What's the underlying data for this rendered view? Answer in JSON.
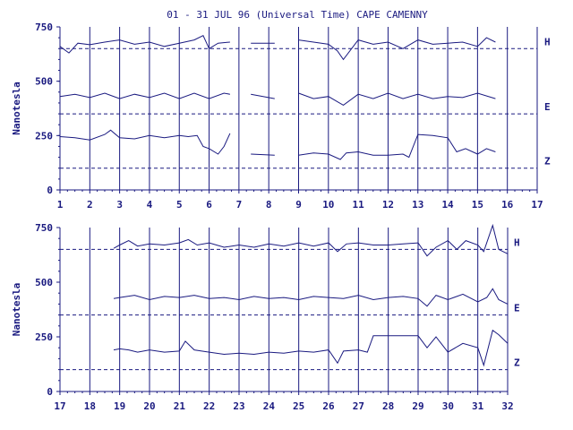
{
  "title": "01 - 31 JUL 96 (Universal Time) CAPE CAMENNY",
  "colors": {
    "ink": "#1a1a80",
    "background": "#ffffff"
  },
  "chart_data": [
    {
      "type": "line",
      "panel": "top",
      "title": "01 - 31 JUL 96 (Universal Time) CAPE CAMENNY",
      "ylabel": "Nanotesla",
      "xlim": [
        1,
        17
      ],
      "ylim": [
        0,
        750
      ],
      "x_ticks": [
        "1",
        "2",
        "3",
        "4",
        "5",
        "6",
        "7",
        "8",
        "9",
        "10",
        "11",
        "12",
        "13",
        "14",
        "15",
        "16",
        "17"
      ],
      "y_ticks": [
        "0",
        "250",
        "500",
        "750"
      ],
      "baselines": [
        {
          "name": "H",
          "value": 650
        },
        {
          "name": "E",
          "value": 350
        },
        {
          "name": "Z",
          "value": 100
        }
      ],
      "grid": "vertical lines at each day",
      "series": [
        {
          "name": "H",
          "x": [
            1,
            1.3,
            1.6,
            2,
            2.5,
            3,
            3.5,
            4,
            4.5,
            5,
            5.5,
            5.8,
            6,
            6.3,
            6.7,
            null,
            7.4,
            8.2,
            null,
            9,
            9.5,
            10,
            10.3,
            10.5,
            11,
            11.5,
            12,
            12.5,
            13,
            13.5,
            14,
            14.5,
            15,
            15.3,
            15.6
          ],
          "y": [
            660,
            630,
            675,
            668,
            680,
            690,
            670,
            680,
            660,
            675,
            690,
            710,
            650,
            675,
            680,
            null,
            675,
            675,
            null,
            690,
            680,
            670,
            640,
            600,
            690,
            670,
            680,
            650,
            690,
            670,
            675,
            680,
            660,
            700,
            680
          ]
        },
        {
          "name": "E",
          "x": [
            1,
            1.5,
            2,
            2.5,
            3,
            3.5,
            4,
            4.5,
            5,
            5.5,
            6,
            6.5,
            6.7,
            null,
            7.4,
            8.2,
            null,
            9,
            9.5,
            10,
            10.5,
            11,
            11.5,
            12,
            12.5,
            13,
            13.5,
            14,
            14.5,
            15,
            15.6
          ],
          "y": [
            430,
            440,
            425,
            445,
            420,
            440,
            425,
            445,
            420,
            445,
            420,
            445,
            440,
            null,
            440,
            420,
            null,
            445,
            420,
            430,
            390,
            440,
            420,
            445,
            420,
            440,
            420,
            430,
            425,
            445,
            420
          ]
        },
        {
          "name": "Z",
          "x": [
            1,
            1.5,
            2,
            2.5,
            2.7,
            3,
            3.5,
            4,
            4.5,
            5,
            5.3,
            5.6,
            5.8,
            6,
            6.3,
            6.5,
            6.7,
            null,
            7.4,
            8.2,
            null,
            9,
            9.5,
            10,
            10.4,
            10.6,
            11,
            11.5,
            12,
            12.5,
            12.7,
            13,
            13.5,
            14,
            14.3,
            14.6,
            15,
            15.3,
            15.6
          ],
          "y": [
            245,
            240,
            230,
            255,
            275,
            240,
            235,
            250,
            240,
            250,
            245,
            250,
            200,
            190,
            165,
            200,
            260,
            null,
            165,
            160,
            null,
            160,
            170,
            165,
            140,
            170,
            175,
            160,
            160,
            165,
            150,
            255,
            250,
            240,
            175,
            190,
            165,
            190,
            175
          ]
        }
      ]
    },
    {
      "type": "line",
      "panel": "bottom",
      "ylabel": "Nanotesla",
      "xlim": [
        17,
        32
      ],
      "ylim": [
        0,
        750
      ],
      "x_ticks": [
        "17",
        "18",
        "19",
        "20",
        "21",
        "22",
        "23",
        "24",
        "25",
        "26",
        "27",
        "28",
        "29",
        "30",
        "31",
        "32"
      ],
      "y_ticks": [
        "0",
        "250",
        "500",
        "750"
      ],
      "baselines": [
        {
          "name": "H",
          "value": 650
        },
        {
          "name": "E",
          "value": 350
        },
        {
          "name": "Z",
          "value": 100
        }
      ],
      "grid": "vertical lines at each day",
      "series": [
        {
          "name": "H",
          "x": [
            18.8,
            19,
            19.3,
            19.6,
            20,
            20.5,
            21,
            21.3,
            21.6,
            22,
            22.5,
            23,
            23.5,
            24,
            24.5,
            25,
            25.5,
            26,
            26.3,
            26.6,
            27,
            27.5,
            28,
            28.5,
            29,
            29.3,
            29.6,
            30,
            30.3,
            30.6,
            31,
            31.2,
            31.5,
            31.7,
            32
          ],
          "y": [
            655,
            670,
            690,
            665,
            675,
            670,
            680,
            695,
            670,
            680,
            660,
            670,
            660,
            675,
            665,
            680,
            665,
            680,
            640,
            675,
            680,
            670,
            670,
            675,
            680,
            620,
            660,
            690,
            650,
            690,
            670,
            640,
            760,
            650,
            630
          ]
        },
        {
          "name": "E",
          "x": [
            18.8,
            19,
            19.5,
            20,
            20.5,
            21,
            21.5,
            22,
            22.5,
            23,
            23.5,
            24,
            24.5,
            25,
            25.5,
            26,
            26.5,
            27,
            27.5,
            28,
            28.5,
            29,
            29.3,
            29.6,
            30,
            30.5,
            31,
            31.3,
            31.5,
            31.7,
            32
          ],
          "y": [
            425,
            430,
            440,
            420,
            435,
            430,
            440,
            425,
            430,
            420,
            435,
            425,
            430,
            420,
            435,
            430,
            425,
            440,
            420,
            430,
            435,
            425,
            390,
            440,
            420,
            445,
            410,
            430,
            470,
            420,
            400
          ]
        },
        {
          "name": "Z",
          "x": [
            18.8,
            19,
            19.3,
            19.6,
            20,
            20.5,
            21,
            21.2,
            21.5,
            22,
            22.5,
            23,
            23.5,
            24,
            24.5,
            25,
            25.5,
            26,
            26.3,
            26.5,
            27,
            27.3,
            27.5,
            28,
            28.5,
            29,
            29.3,
            29.6,
            30,
            30.5,
            31,
            31.2,
            31.5,
            31.7,
            32
          ],
          "y": [
            190,
            195,
            190,
            180,
            190,
            180,
            185,
            230,
            190,
            180,
            170,
            175,
            170,
            180,
            175,
            185,
            180,
            190,
            130,
            185,
            190,
            180,
            255,
            255,
            255,
            255,
            200,
            250,
            180,
            220,
            200,
            120,
            280,
            260,
            220
          ]
        }
      ]
    }
  ]
}
